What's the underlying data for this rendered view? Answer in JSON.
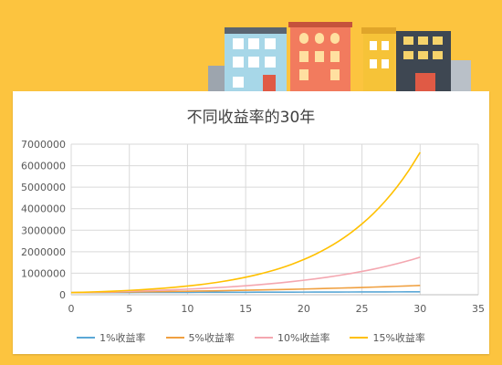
{
  "chart_data": {
    "type": "line",
    "title": "不同收益率的30年",
    "xlabel": "",
    "ylabel": "",
    "xlim": [
      0,
      35
    ],
    "ylim": [
      0,
      7000000
    ],
    "x_ticks": [
      0,
      5,
      10,
      15,
      20,
      25,
      30,
      35
    ],
    "y_ticks": [
      0,
      1000000,
      2000000,
      3000000,
      4000000,
      5000000,
      6000000,
      7000000
    ],
    "grid": true,
    "legend_position": "bottom",
    "x": [
      0,
      1,
      2,
      3,
      4,
      5,
      6,
      7,
      8,
      9,
      10,
      11,
      12,
      13,
      14,
      15,
      16,
      17,
      18,
      19,
      20,
      21,
      22,
      23,
      24,
      25,
      26,
      27,
      28,
      29,
      30
    ],
    "series": [
      {
        "name": "1%收益率",
        "color": "#5BA8D6",
        "values": [
          100000,
          101000,
          102010,
          103030,
          104060,
          105101,
          106152,
          107214,
          108286,
          109369,
          110462,
          111567,
          112683,
          113809,
          114947,
          116097,
          117258,
          118430,
          119615,
          120811,
          122019,
          123239,
          124472,
          125716,
          126973,
          128243,
          129526,
          130821,
          132129,
          133450,
          134785
        ]
      },
      {
        "name": "5%收益率",
        "color": "#F0A040",
        "values": [
          100000,
          105000,
          110250,
          115763,
          121551,
          127628,
          134010,
          140710,
          147746,
          155133,
          162889,
          171034,
          179586,
          188565,
          197993,
          207893,
          218287,
          229202,
          240662,
          252695,
          265330,
          278596,
          292526,
          307152,
          322510,
          338635,
          355567,
          373346,
          392013,
          411614,
          432194
        ]
      },
      {
        "name": "10%收益率",
        "color": "#F4A7B0",
        "values": [
          100000,
          110000,
          121000,
          133100,
          146410,
          161051,
          177156,
          194872,
          214359,
          235795,
          259374,
          285312,
          313843,
          345227,
          379750,
          417725,
          459497,
          505447,
          555992,
          611591,
          672750,
          740025,
          814027,
          895430,
          984973,
          1083471,
          1191818,
          1310999,
          1442099,
          1586309,
          1744940
        ]
      },
      {
        "name": "15%收益率",
        "color": "#FFC000",
        "values": [
          100000,
          115000,
          132250,
          152088,
          174901,
          201136,
          231306,
          266002,
          305902,
          351788,
          404556,
          465239,
          535025,
          615279,
          707571,
          813706,
          935762,
          1076126,
          1237545,
          1423177,
          1636654,
          1882152,
          2164475,
          2489146,
          2862518,
          3291895,
          3785680,
          4353531,
          5006561,
          5757545,
          6621177
        ]
      }
    ]
  },
  "decoration": {
    "background_color": "#FCC43F",
    "icon": "buildings-illustration"
  }
}
